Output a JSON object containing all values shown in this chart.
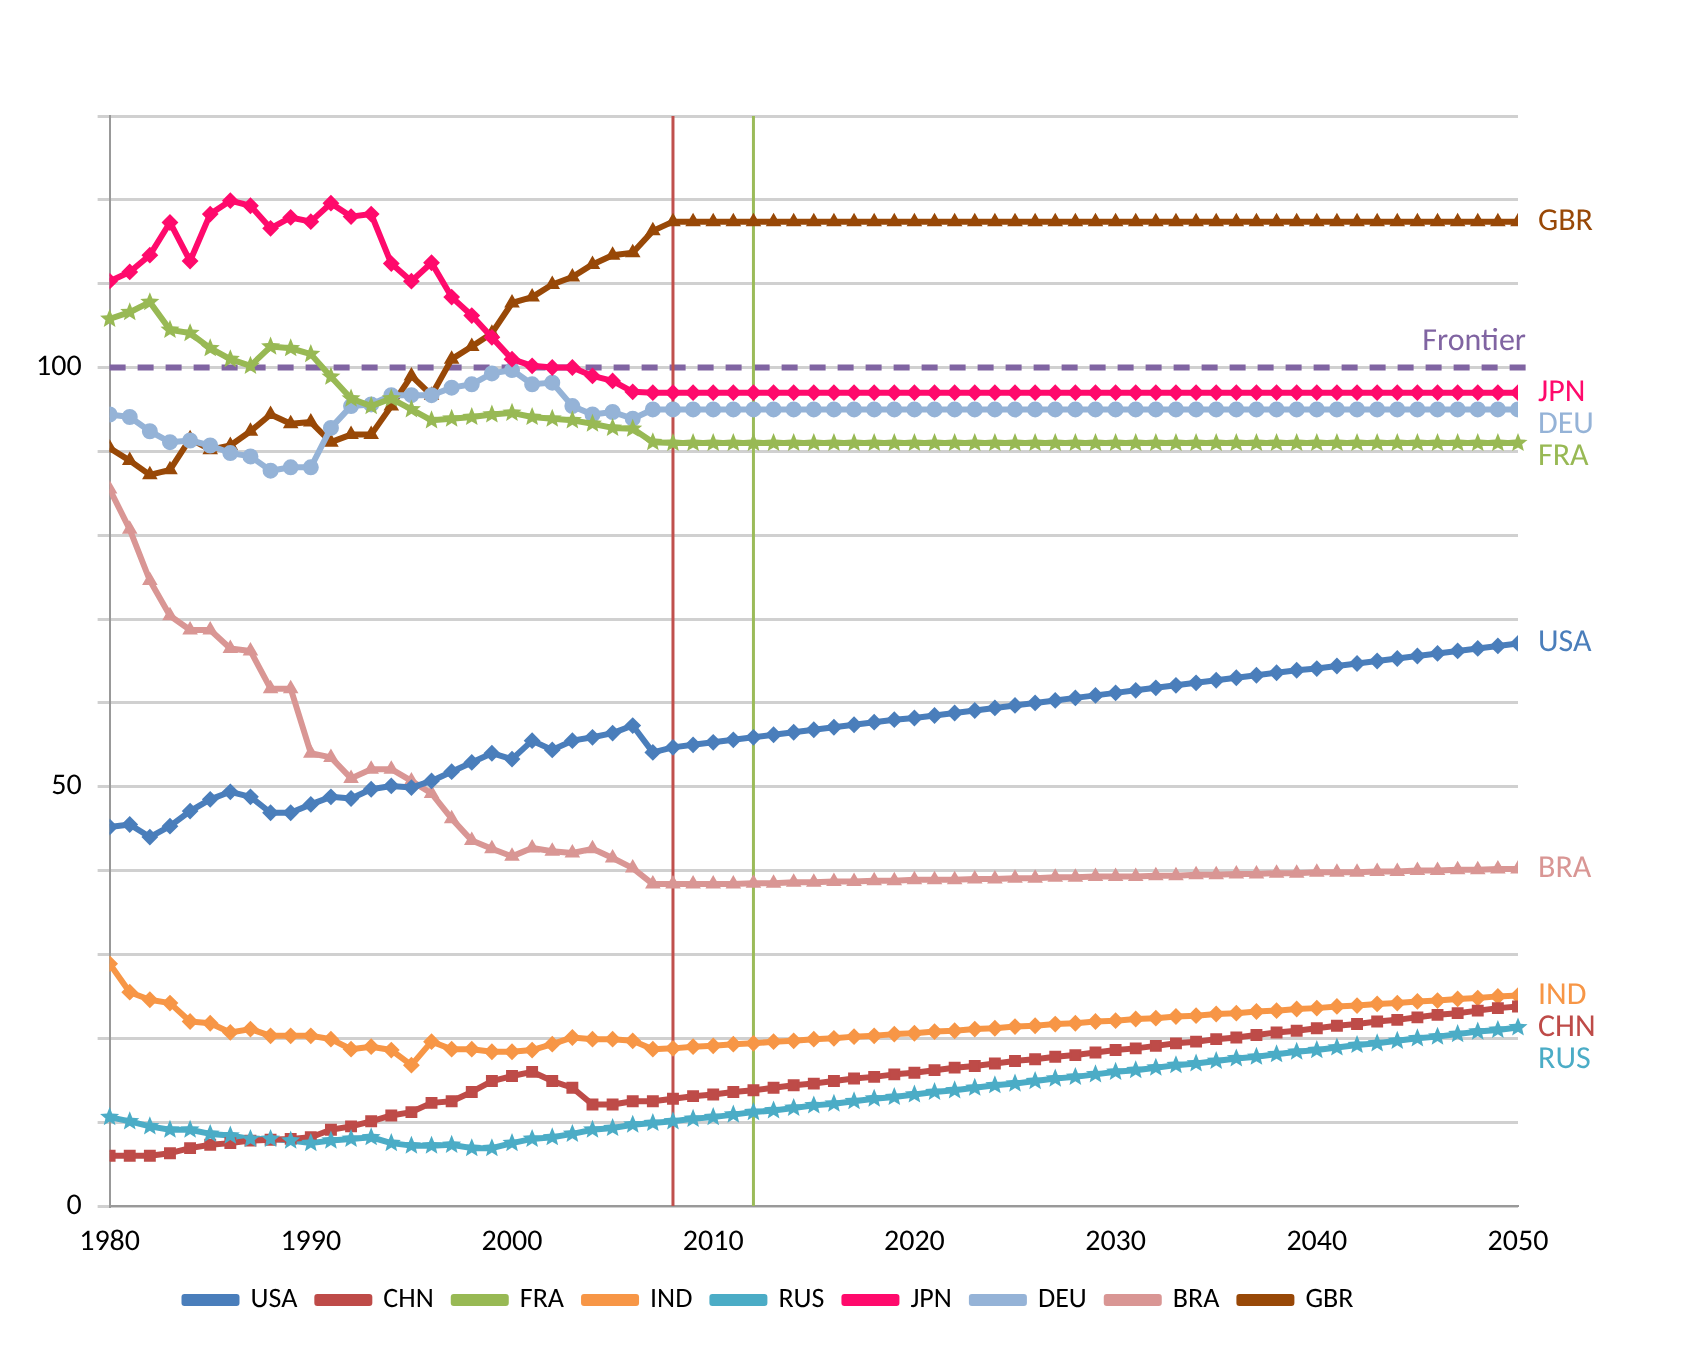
{
  "chart_data": {
    "type": "line",
    "x": [
      1980,
      1981,
      1982,
      1983,
      1984,
      1985,
      1986,
      1987,
      1988,
      1989,
      1990,
      1991,
      1992,
      1993,
      1994,
      1995,
      1996,
      1997,
      1998,
      1999,
      2000,
      2001,
      2002,
      2003,
      2004,
      2005,
      2006,
      2007,
      2008,
      2009,
      2010,
      2011,
      2012,
      2013,
      2014,
      2015,
      2016,
      2017,
      2018,
      2019,
      2020,
      2021,
      2022,
      2023,
      2024,
      2025,
      2026,
      2027,
      2028,
      2029,
      2030,
      2031,
      2032,
      2033,
      2034,
      2035,
      2036,
      2037,
      2038,
      2039,
      2040,
      2041,
      2042,
      2043,
      2044,
      2045,
      2046,
      2047,
      2048,
      2049,
      2050
    ],
    "xlim": [
      1980,
      2050
    ],
    "xticks": [
      1980,
      1990,
      2000,
      2010,
      2020,
      2030,
      2040,
      2050
    ],
    "ylim": [
      0,
      130
    ],
    "yticks": [
      0,
      {
        "value": 10,
        "label": null
      },
      {
        "value": 20,
        "label": null
      },
      {
        "value": 30,
        "label": null
      },
      {
        "value": 40,
        "label": null
      },
      50,
      {
        "value": 60,
        "label": null
      },
      {
        "value": 70,
        "label": null
      },
      {
        "value": 80,
        "label": null
      },
      {
        "value": 90,
        "label": null
      },
      100,
      {
        "value": 110,
        "label": null
      },
      {
        "value": 120,
        "label": null
      },
      {
        "value": 130,
        "label": null
      }
    ],
    "grid": "y",
    "legend": "bottom",
    "ref_lines": [
      {
        "axis": "y",
        "value": 100,
        "label": "Frontier",
        "color": "#8064a2",
        "line_style": "dashed"
      },
      {
        "axis": "x",
        "value": 2008,
        "label": null,
        "color": "#c0504d"
      },
      {
        "axis": "x",
        "value": 2012,
        "label": null,
        "color": "#9bbb59"
      }
    ],
    "series": [
      {
        "name": "USA",
        "color": "#4a7ebb",
        "marker": "diamond",
        "values": [
          45.2,
          45.5,
          44.0,
          45.3,
          47.1,
          48.5,
          49.4,
          48.8,
          46.9,
          46.9,
          47.9,
          48.8,
          48.6,
          49.7,
          50.1,
          49.9,
          50.7,
          51.8,
          52.9,
          54.0,
          53.3,
          55.5,
          54.4,
          55.5,
          55.9,
          56.4,
          57.3,
          54.1,
          54.7,
          55.0,
          55.3,
          55.6,
          55.9,
          56.2,
          56.5,
          56.8,
          57.1,
          57.4,
          57.7,
          58.0,
          58.2,
          58.5,
          58.8,
          59.1,
          59.4,
          59.7,
          60.0,
          60.3,
          60.6,
          60.9,
          61.2,
          61.5,
          61.8,
          62.1,
          62.4,
          62.7,
          63.0,
          63.3,
          63.6,
          63.9,
          64.1,
          64.4,
          64.7,
          65.0,
          65.3,
          65.6,
          65.9,
          66.2,
          66.5,
          66.8,
          67.1
        ]
      },
      {
        "name": "CHN",
        "color": "#be4b48",
        "marker": "square",
        "values": [
          6.0,
          6.0,
          6.0,
          6.3,
          6.9,
          7.3,
          7.5,
          7.8,
          7.9,
          8.0,
          8.2,
          9.1,
          9.5,
          10.1,
          10.8,
          11.2,
          12.3,
          12.5,
          13.6,
          14.9,
          15.5,
          16.0,
          14.9,
          14.1,
          12.1,
          12.1,
          12.5,
          12.5,
          12.8,
          13.1,
          13.3,
          13.6,
          13.8,
          14.1,
          14.4,
          14.6,
          14.9,
          15.2,
          15.4,
          15.7,
          15.9,
          16.2,
          16.5,
          16.7,
          17.0,
          17.3,
          17.5,
          17.8,
          18.0,
          18.3,
          18.6,
          18.8,
          19.1,
          19.4,
          19.6,
          19.9,
          20.1,
          20.4,
          20.7,
          20.9,
          21.2,
          21.5,
          21.7,
          22.0,
          22.2,
          22.5,
          22.8,
          23.0,
          23.3,
          23.6,
          23.8
        ]
      },
      {
        "name": "FRA",
        "color": "#98b954",
        "marker": "star",
        "values": [
          105.8,
          106.6,
          107.8,
          104.5,
          104.1,
          102.3,
          101.0,
          100.2,
          102.5,
          102.3,
          101.6,
          98.9,
          96.3,
          95.4,
          96.3,
          95.0,
          93.7,
          93.9,
          94.1,
          94.4,
          94.6,
          94.1,
          93.9,
          93.7,
          93.3,
          92.8,
          92.7,
          91.1,
          91,
          91,
          91,
          91,
          91,
          91,
          91,
          91,
          91,
          91,
          91,
          91,
          91,
          91,
          91,
          91,
          91,
          91,
          91,
          91,
          91,
          91,
          91,
          91,
          91,
          91,
          91,
          91,
          91,
          91,
          91,
          91,
          91,
          91,
          91,
          91,
          91,
          91,
          91,
          91,
          91,
          91,
          91
        ]
      },
      {
        "name": "IND",
        "color": "#f79646",
        "marker": "diamond",
        "values": [
          28.9,
          25.5,
          24.6,
          24.2,
          22.0,
          21.8,
          20.7,
          21.1,
          20.3,
          20.3,
          20.3,
          19.9,
          18.7,
          19.0,
          18.6,
          16.8,
          19.6,
          18.7,
          18.7,
          18.4,
          18.4,
          18.6,
          19.3,
          20.1,
          19.9,
          19.9,
          19.7,
          18.7,
          18.8,
          19.0,
          19.1,
          19.3,
          19.4,
          19.6,
          19.7,
          19.9,
          20.0,
          20.2,
          20.3,
          20.5,
          20.6,
          20.8,
          20.9,
          21.1,
          21.2,
          21.4,
          21.5,
          21.7,
          21.8,
          22.0,
          22.1,
          22.3,
          22.4,
          22.6,
          22.7,
          22.9,
          23.0,
          23.2,
          23.3,
          23.5,
          23.6,
          23.8,
          23.9,
          24.1,
          24.2,
          24.4,
          24.5,
          24.7,
          24.8,
          25.0,
          25.1
        ]
      },
      {
        "name": "RUS",
        "color": "#4bacc6",
        "marker": "star",
        "values": [
          10.6,
          10.1,
          9.5,
          9.1,
          9.1,
          8.6,
          8.4,
          8.0,
          8.0,
          7.8,
          7.5,
          7.8,
          8.0,
          8.2,
          7.5,
          7.2,
          7.2,
          7.3,
          6.9,
          6.9,
          7.5,
          8.0,
          8.2,
          8.6,
          9.1,
          9.3,
          9.7,
          9.9,
          10.1,
          10.4,
          10.6,
          10.9,
          11.2,
          11.4,
          11.7,
          12.0,
          12.2,
          12.5,
          12.8,
          13.0,
          13.3,
          13.6,
          13.8,
          14.1,
          14.4,
          14.6,
          14.9,
          15.2,
          15.4,
          15.7,
          16.0,
          16.2,
          16.5,
          16.8,
          17.0,
          17.3,
          17.6,
          17.8,
          18.1,
          18.4,
          18.6,
          18.9,
          19.2,
          19.4,
          19.7,
          20.0,
          20.2,
          20.5,
          20.8,
          21.0,
          21.3
        ]
      },
      {
        "name": "JPN",
        "color": "#ff0a6c",
        "marker": "diamond",
        "values": [
          110.3,
          111.4,
          113.4,
          117.3,
          112.7,
          118.3,
          119.9,
          119.3,
          116.6,
          117.9,
          117.4,
          119.6,
          118.0,
          118.3,
          112.4,
          110.3,
          112.5,
          108.4,
          106.2,
          103.6,
          101.0,
          100.2,
          100.0,
          100.0,
          99.0,
          98.4,
          97.1,
          97.0,
          97,
          97,
          97,
          97,
          97,
          97,
          97,
          97,
          97,
          97,
          97,
          97,
          97,
          97,
          97,
          97,
          97,
          97,
          97,
          97,
          97,
          97,
          97,
          97,
          97,
          97,
          97,
          97,
          97,
          97,
          97,
          97,
          97,
          97,
          97,
          97,
          97,
          97,
          97,
          97,
          97,
          97,
          97
        ]
      },
      {
        "name": "DEU",
        "color": "#95b3d7",
        "marker": "circle",
        "values": [
          94.4,
          94.1,
          92.4,
          91.1,
          91.3,
          90.7,
          89.8,
          89.4,
          87.7,
          88.1,
          88.1,
          92.8,
          95.4,
          95.6,
          96.7,
          96.7,
          96.7,
          97.6,
          98.0,
          99.3,
          99.7,
          98.0,
          98.2,
          95.4,
          94.4,
          94.7,
          93.9,
          95.0,
          95,
          95,
          95,
          95,
          95,
          95,
          95,
          95,
          95,
          95,
          95,
          95,
          95,
          95,
          95,
          95,
          95,
          95,
          95,
          95,
          95,
          95,
          95,
          95,
          95,
          95,
          95,
          95,
          95,
          95,
          95,
          95,
          95,
          95,
          95,
          95,
          95,
          95,
          95,
          95,
          95,
          95,
          95
        ]
      },
      {
        "name": "BRA",
        "color": "#d99694",
        "marker": "triangle",
        "values": [
          85.5,
          80.7,
          74.6,
          70.4,
          68.7,
          68.7,
          66.5,
          66.2,
          61.7,
          61.7,
          54.0,
          53.5,
          51.0,
          52.1,
          52.1,
          50.7,
          49.2,
          46.2,
          43.6,
          42.6,
          41.7,
          42.7,
          42.3,
          42.1,
          42.6,
          41.5,
          40.3,
          38.4,
          38.4,
          38.4,
          38.4,
          38.4,
          38.5,
          38.5,
          38.6,
          38.6,
          38.7,
          38.7,
          38.8,
          38.8,
          38.9,
          38.9,
          38.9,
          39.0,
          39.0,
          39.1,
          39.1,
          39.2,
          39.2,
          39.3,
          39.3,
          39.3,
          39.4,
          39.4,
          39.5,
          39.5,
          39.6,
          39.6,
          39.7,
          39.7,
          39.8,
          39.8,
          39.8,
          39.9,
          39.9,
          40.0,
          40.0,
          40.1,
          40.1,
          40.2,
          40.2
        ]
      },
      {
        "name": "GBR",
        "color": "#984807",
        "marker": "triangle",
        "values": [
          90.4,
          88.9,
          87.2,
          87.8,
          91.5,
          90.2,
          90.7,
          92.4,
          94.4,
          93.3,
          93.5,
          91.1,
          92.0,
          92.0,
          95.4,
          99.0,
          96.7,
          101.0,
          102.5,
          104.1,
          107.7,
          108.4,
          109.9,
          110.8,
          112.3,
          113.4,
          113.7,
          116.3,
          117.4,
          117.4,
          117.4,
          117.4,
          117.4,
          117.4,
          117.4,
          117.4,
          117.4,
          117.4,
          117.4,
          117.4,
          117.4,
          117.4,
          117.4,
          117.4,
          117.4,
          117.4,
          117.4,
          117.4,
          117.4,
          117.4,
          117.4,
          117.4,
          117.4,
          117.4,
          117.4,
          117.4,
          117.4,
          117.4,
          117.4,
          117.4,
          117.4,
          117.4,
          117.4,
          117.4,
          117.4,
          117.4,
          117.4,
          117.4,
          117.4,
          117.4,
          117.4
        ]
      }
    ]
  }
}
